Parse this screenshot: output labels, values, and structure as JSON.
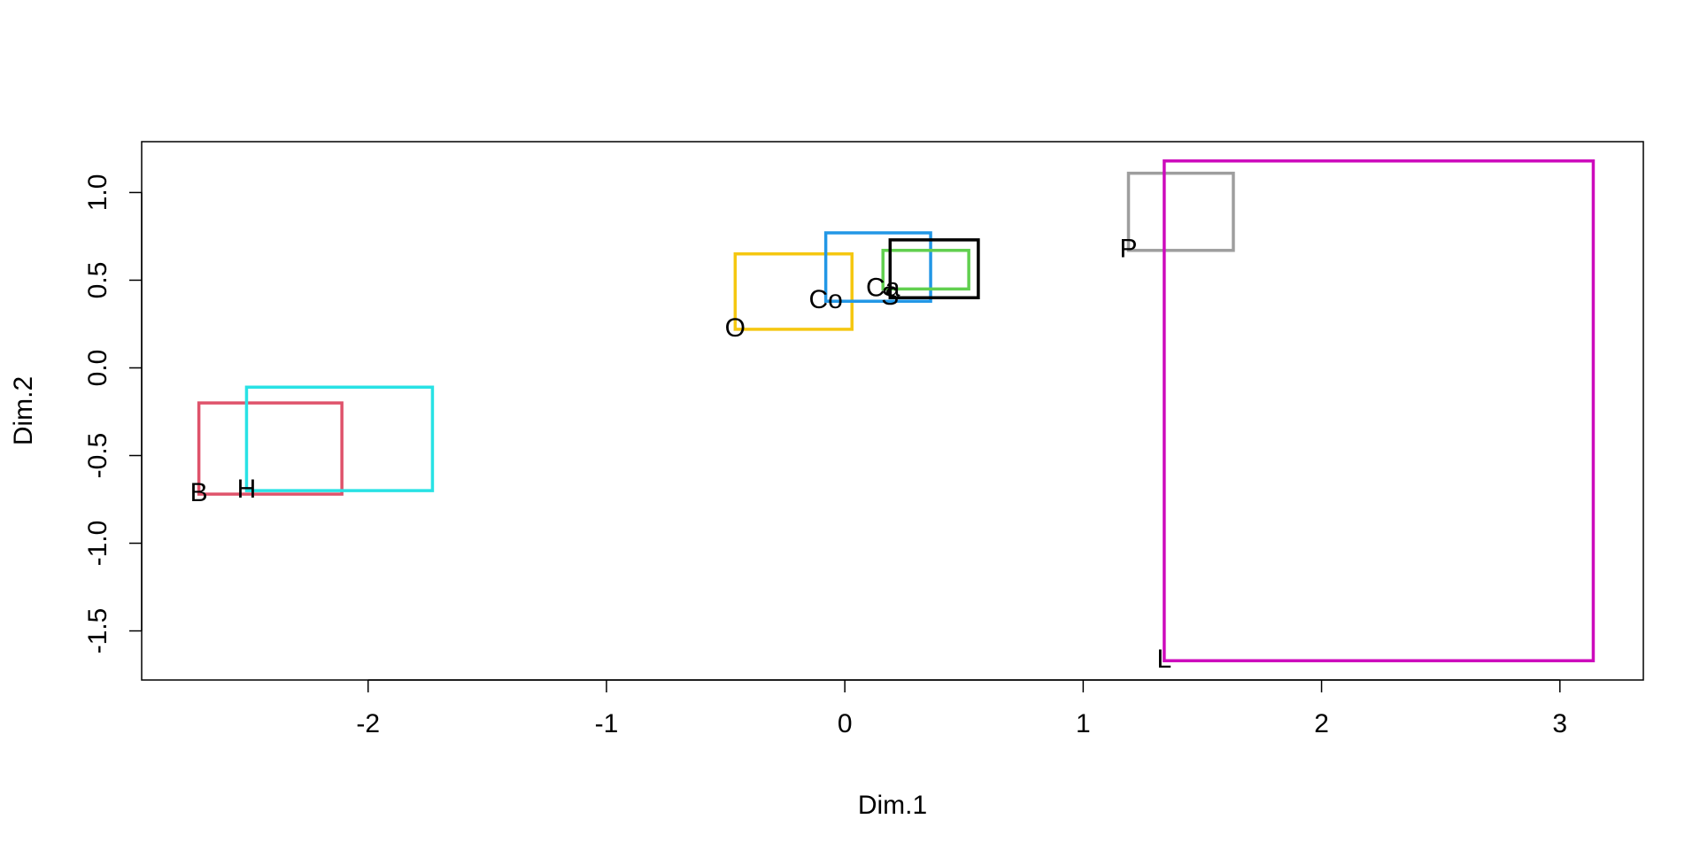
{
  "chart_data": {
    "type": "rectangle",
    "title": "",
    "xlabel": "Dim.1",
    "ylabel": "Dim.2",
    "xlim": [
      -2.95,
      3.35
    ],
    "ylim": [
      -1.78,
      1.29
    ],
    "grid": false,
    "x_ticks": [
      -2,
      -1,
      0,
      1,
      2,
      3
    ],
    "y_ticks": [
      -1.5,
      -1.0,
      -0.5,
      0.0,
      0.5,
      1.0
    ],
    "x_tick_labels": [
      "-2",
      "-1",
      "0",
      "1",
      "2",
      "3"
    ],
    "y_tick_labels": [
      "-1.5",
      "-1.0",
      "-0.5",
      "0.0",
      "0.5",
      "1.0"
    ],
    "rectangles": [
      {
        "label": "B",
        "color": "#DF536B",
        "x": [
          -2.71,
          -2.11
        ],
        "y": [
          -0.72,
          -0.2
        ]
      },
      {
        "label": "H",
        "color": "#28E2E5",
        "x": [
          -2.51,
          -1.73
        ],
        "y": [
          -0.7,
          -0.11
        ]
      },
      {
        "label": "O",
        "color": "#F5C710",
        "x": [
          -0.46,
          0.03
        ],
        "y": [
          0.22,
          0.65
        ]
      },
      {
        "label": "Co",
        "color": "#2297E6",
        "x": [
          -0.08,
          0.36
        ],
        "y": [
          0.38,
          0.77
        ]
      },
      {
        "label": "Ca",
        "color": "#61D04F",
        "x": [
          0.16,
          0.52
        ],
        "y": [
          0.45,
          0.67
        ]
      },
      {
        "label": "S",
        "color": "#000000",
        "x": [
          0.19,
          0.56
        ],
        "y": [
          0.4,
          0.73
        ]
      },
      {
        "label": "P",
        "color": "#9E9E9E",
        "x": [
          1.19,
          1.63
        ],
        "y": [
          0.67,
          1.11
        ]
      },
      {
        "label": "L",
        "color": "#CD0BBC",
        "x": [
          1.34,
          3.14
        ],
        "y": [
          -1.67,
          1.18
        ]
      }
    ]
  }
}
